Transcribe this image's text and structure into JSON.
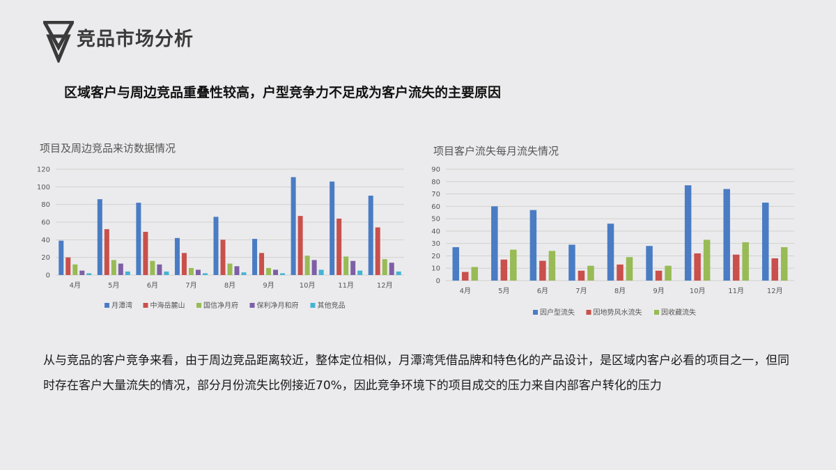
{
  "header": {
    "logo_icon": "double-triangle-icon",
    "title": "竞品市场分析",
    "subtitle": "区域客户与周边竞品重叠性较高，户型竞争力不足成为客户流失的主要原因"
  },
  "body_text": "从与竞品的客户竞争来看，由于周边竞品距离较近，整体定位相似，月潭湾凭借品牌和特色化的产品设计，是区域内客户必看的项目之一，但同时存在客户大量流失的情况，部分月份流失比例接近70%，因此竞争环境下的项目成交的压力来自内部客户转化的压力",
  "chart_data": [
    {
      "type": "bar",
      "title": "项目及周边竞品来访数据情况",
      "categories": [
        "4月",
        "5月",
        "6月",
        "7月",
        "8月",
        "9月",
        "10月",
        "11月",
        "12月"
      ],
      "ylim": [
        0,
        120
      ],
      "yticks": [
        0,
        20,
        40,
        60,
        80,
        100,
        120
      ],
      "grid": true,
      "legend_position": "bottom",
      "series": [
        {
          "name": "月潭湾",
          "color": "#4a7cc4",
          "values": [
            39,
            86,
            82,
            42,
            66,
            41,
            111,
            106,
            90
          ]
        },
        {
          "name": "中海岳麓山",
          "color": "#c9504c",
          "values": [
            20,
            52,
            49,
            25,
            40,
            25,
            67,
            64,
            54
          ]
        },
        {
          "name": "国信净月府",
          "color": "#98bb55",
          "values": [
            12,
            17,
            16,
            8,
            13,
            8,
            22,
            21,
            18
          ]
        },
        {
          "name": "保利净月和府",
          "color": "#7d5fa6",
          "values": [
            5,
            13,
            12,
            6,
            10,
            6,
            17,
            16,
            14
          ]
        },
        {
          "name": "其他竞品",
          "color": "#46b3d3",
          "values": [
            2,
            4,
            4,
            2,
            3,
            2,
            6,
            5,
            4
          ]
        }
      ]
    },
    {
      "type": "bar",
      "title": "项目客户流失每月流失情况",
      "categories": [
        "4月",
        "5月",
        "6月",
        "7月",
        "8月",
        "9月",
        "10月",
        "11月",
        "12月"
      ],
      "ylim": [
        0,
        90
      ],
      "yticks": [
        0,
        10,
        20,
        30,
        40,
        50,
        60,
        70,
        80,
        90
      ],
      "grid": true,
      "legend_position": "bottom",
      "series": [
        {
          "name": "因户型流失",
          "color": "#4a7cc4",
          "values": [
            27,
            60,
            57,
            29,
            46,
            28,
            77,
            74,
            63
          ]
        },
        {
          "name": "因地势风水流失",
          "color": "#c9504c",
          "values": [
            7,
            17,
            16,
            8,
            13,
            8,
            22,
            21,
            18
          ]
        },
        {
          "name": "因收藏流失",
          "color": "#98bb55",
          "values": [
            11,
            25,
            24,
            12,
            19,
            12,
            33,
            31,
            27
          ]
        }
      ]
    }
  ]
}
